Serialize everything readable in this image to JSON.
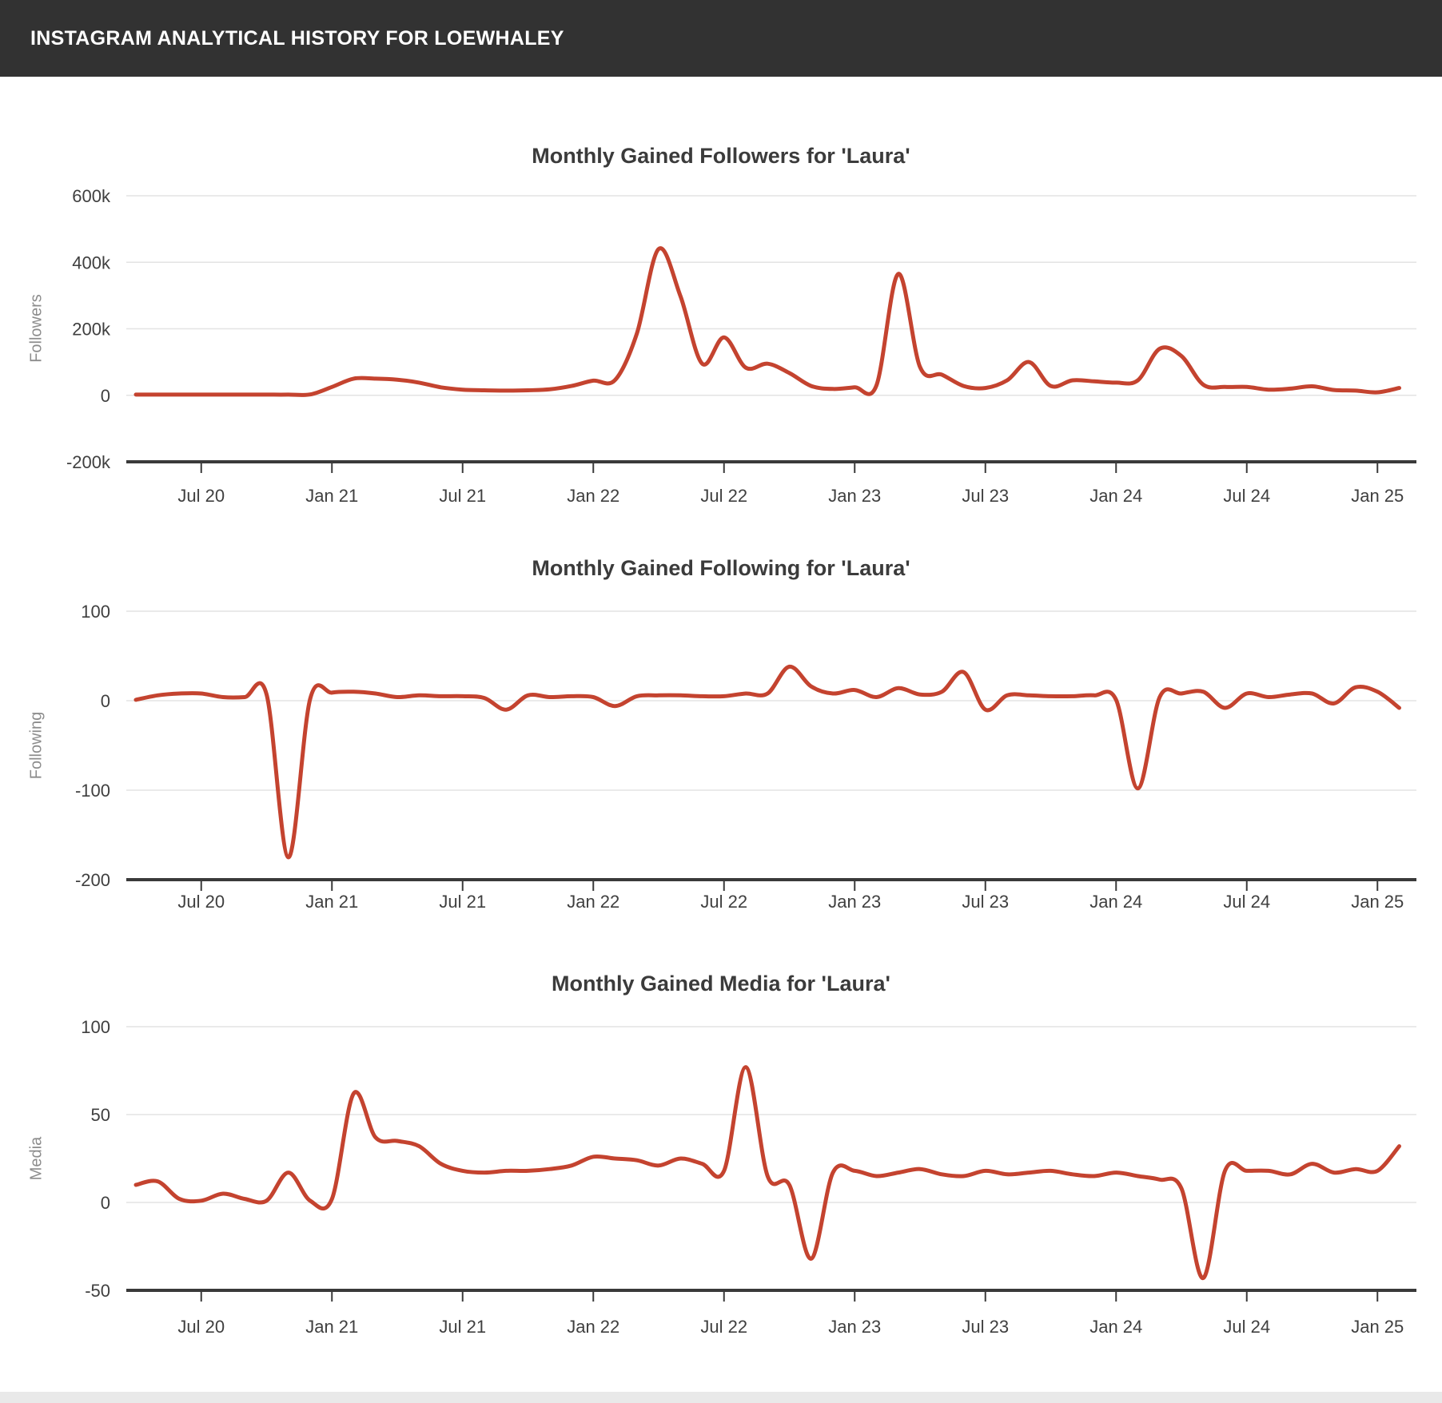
{
  "header": {
    "title": "INSTAGRAM ANALYTICAL HISTORY FOR LOEWHALEY"
  },
  "colors": {
    "line": "#c4432f",
    "header_bg": "#323232",
    "header_text": "#ffffff",
    "background": "#ffffff",
    "grid": "#e3e3e3",
    "axis": "#3a3a3a",
    "title_text": "#3b3b3b",
    "tick_text": "#3f3f3f",
    "axis_name_text": "#8c8c8c",
    "footer_bg": "#e9e9e9"
  },
  "chart_data": [
    {
      "type": "line",
      "title": "Monthly Gained Followers for 'Laura'",
      "ylabel": "Followers",
      "xlabel": "",
      "smooth": true,
      "grid": "on",
      "legend": "off",
      "ylim": [
        -200000,
        600000
      ],
      "y_ticks": [
        {
          "label": "600k",
          "value": 600000
        },
        {
          "label": "400k",
          "value": 400000
        },
        {
          "label": "200k",
          "value": 200000
        },
        {
          "label": "0",
          "value": 0
        },
        {
          "label": "-200k",
          "value": -200000
        }
      ],
      "x_tick_labels": [
        "Jul 20",
        "Jan 21",
        "Jul 21",
        "Jan 22",
        "Jul 22",
        "Jan 23",
        "Jul 23",
        "Jan 24",
        "Jul 24",
        "Jan 25"
      ],
      "x_tick_category_indices": [
        3,
        9,
        15,
        21,
        27,
        33,
        39,
        45,
        51,
        57
      ],
      "categories": [
        "Apr 20",
        "May 20",
        "Jun 20",
        "Jul 20",
        "Aug 20",
        "Sep 20",
        "Oct 20",
        "Nov 20",
        "Dec 20",
        "Jan 21",
        "Feb 21",
        "Mar 21",
        "Apr 21",
        "May 21",
        "Jun 21",
        "Jul 21",
        "Aug 21",
        "Sep 21",
        "Oct 21",
        "Nov 21",
        "Dec 21",
        "Jan 22",
        "Feb 22",
        "Mar 22",
        "Apr 22",
        "May 22",
        "Jun 22",
        "Jul 22",
        "Aug 22",
        "Sep 22",
        "Oct 22",
        "Nov 22",
        "Dec 22",
        "Jan 23",
        "Feb 23",
        "Mar 23",
        "Apr 23",
        "May 23",
        "Jun 23",
        "Jul 23",
        "Aug 23",
        "Sep 23",
        "Oct 23",
        "Nov 23",
        "Dec 23",
        "Jan 24",
        "Feb 24",
        "Mar 24",
        "Apr 24",
        "May 24",
        "Jun 24",
        "Jul 24",
        "Aug 24",
        "Sep 24",
        "Oct 24",
        "Nov 24",
        "Dec 24",
        "Jan 25",
        "Feb 25"
      ],
      "values": [
        2000,
        2000,
        2000,
        2000,
        2000,
        2000,
        2000,
        2000,
        2500,
        25000,
        50000,
        50000,
        47000,
        38000,
        24000,
        17000,
        15000,
        14000,
        15000,
        18000,
        28000,
        44000,
        46000,
        186000,
        440000,
        298000,
        95000,
        174000,
        83000,
        95000,
        67000,
        28000,
        19000,
        24000,
        30000,
        365000,
        85000,
        62000,
        28000,
        22000,
        45000,
        100000,
        28000,
        45000,
        42000,
        38000,
        45000,
        140000,
        118000,
        32000,
        25000,
        25000,
        17000,
        20000,
        27000,
        16000,
        14000,
        9000,
        22000
      ]
    },
    {
      "type": "line",
      "title": "Monthly Gained Following for 'Laura'",
      "ylabel": "Following",
      "xlabel": "",
      "smooth": true,
      "grid": "on",
      "legend": "off",
      "ylim": [
        -200,
        100
      ],
      "y_ticks": [
        {
          "label": "100",
          "value": 100
        },
        {
          "label": "0",
          "value": 0
        },
        {
          "label": "-100",
          "value": -100
        },
        {
          "label": "-200",
          "value": -200
        }
      ],
      "x_tick_labels": [
        "Jul 20",
        "Jan 21",
        "Jul 21",
        "Jan 22",
        "Jul 22",
        "Jan 23",
        "Jul 23",
        "Jan 24",
        "Jul 24",
        "Jan 25"
      ],
      "x_tick_category_indices": [
        3,
        9,
        15,
        21,
        27,
        33,
        39,
        45,
        51,
        57
      ],
      "categories": [
        "Apr 20",
        "May 20",
        "Jun 20",
        "Jul 20",
        "Aug 20",
        "Sep 20",
        "Oct 20",
        "Nov 20",
        "Dec 20",
        "Jan 21",
        "Feb 21",
        "Mar 21",
        "Apr 21",
        "May 21",
        "Jun 21",
        "Jul 21",
        "Aug 21",
        "Sep 21",
        "Oct 21",
        "Nov 21",
        "Dec 21",
        "Jan 22",
        "Feb 22",
        "Mar 22",
        "Apr 22",
        "May 22",
        "Jun 22",
        "Jul 22",
        "Aug 22",
        "Sep 22",
        "Oct 22",
        "Nov 22",
        "Dec 22",
        "Jan 23",
        "Feb 23",
        "Mar 23",
        "Apr 23",
        "May 23",
        "Jun 23",
        "Jul 23",
        "Aug 23",
        "Sep 23",
        "Oct 23",
        "Nov 23",
        "Dec 23",
        "Jan 24",
        "Feb 24",
        "Mar 24",
        "Apr 24",
        "May 24",
        "Jun 24",
        "Jul 24",
        "Aug 24",
        "Sep 24",
        "Oct 24",
        "Nov 24",
        "Dec 24",
        "Jan 25",
        "Feb 25"
      ],
      "values": [
        1,
        6,
        8,
        8,
        4,
        4,
        7,
        -175,
        2,
        9,
        10,
        8,
        4,
        6,
        5,
        5,
        3,
        -10,
        6,
        4,
        5,
        4,
        -6,
        5,
        6,
        6,
        5,
        5,
        8,
        8,
        38,
        16,
        8,
        12,
        4,
        14,
        7,
        10,
        32,
        -10,
        6,
        6,
        5,
        5,
        6,
        1,
        -98,
        4,
        8,
        10,
        -8,
        8,
        4,
        7,
        8,
        -3,
        15,
        10,
        -8
      ]
    },
    {
      "type": "line",
      "title": "Monthly Gained Media for 'Laura'",
      "ylabel": "Media",
      "xlabel": "",
      "smooth": true,
      "grid": "on",
      "legend": "off",
      "ylim": [
        -50,
        100
      ],
      "y_ticks": [
        {
          "label": "100",
          "value": 100
        },
        {
          "label": "50",
          "value": 50
        },
        {
          "label": "0",
          "value": 0
        },
        {
          "label": "-50",
          "value": -50
        }
      ],
      "x_tick_labels": [
        "Jul 20",
        "Jan 21",
        "Jul 21",
        "Jan 22",
        "Jul 22",
        "Jan 23",
        "Jul 23",
        "Jan 24",
        "Jul 24",
        "Jan 25"
      ],
      "x_tick_category_indices": [
        3,
        9,
        15,
        21,
        27,
        33,
        39,
        45,
        51,
        57
      ],
      "categories": [
        "Apr 20",
        "May 20",
        "Jun 20",
        "Jul 20",
        "Aug 20",
        "Sep 20",
        "Oct 20",
        "Nov 20",
        "Dec 20",
        "Jan 21",
        "Feb 21",
        "Mar 21",
        "Apr 21",
        "May 21",
        "Jun 21",
        "Jul 21",
        "Aug 21",
        "Sep 21",
        "Oct 21",
        "Nov 21",
        "Dec 21",
        "Jan 22",
        "Feb 22",
        "Mar 22",
        "Apr 22",
        "May 22",
        "Jun 22",
        "Jul 22",
        "Aug 22",
        "Sep 22",
        "Oct 22",
        "Nov 22",
        "Dec 22",
        "Jan 23",
        "Feb 23",
        "Mar 23",
        "Apr 23",
        "May 23",
        "Jun 23",
        "Jul 23",
        "Aug 23",
        "Sep 23",
        "Oct 23",
        "Nov 23",
        "Dec 23",
        "Jan 24",
        "Feb 24",
        "Mar 24",
        "Apr 24",
        "May 24",
        "Jun 24",
        "Jul 24",
        "Aug 24",
        "Sep 24",
        "Oct 24",
        "Nov 24",
        "Dec 24",
        "Jan 25",
        "Feb 25"
      ],
      "values": [
        10,
        12,
        2,
        1,
        5,
        2,
        1,
        17,
        1,
        2,
        62,
        37,
        35,
        32,
        22,
        18,
        17,
        18,
        18,
        19,
        21,
        26,
        25,
        24,
        21,
        25,
        22,
        18,
        77,
        15,
        10,
        -32,
        17,
        18,
        15,
        17,
        19,
        16,
        15,
        18,
        16,
        17,
        18,
        16,
        15,
        17,
        15,
        13,
        8,
        -43,
        18,
        18,
        18,
        16,
        22,
        17,
        19,
        18,
        32
      ]
    }
  ]
}
